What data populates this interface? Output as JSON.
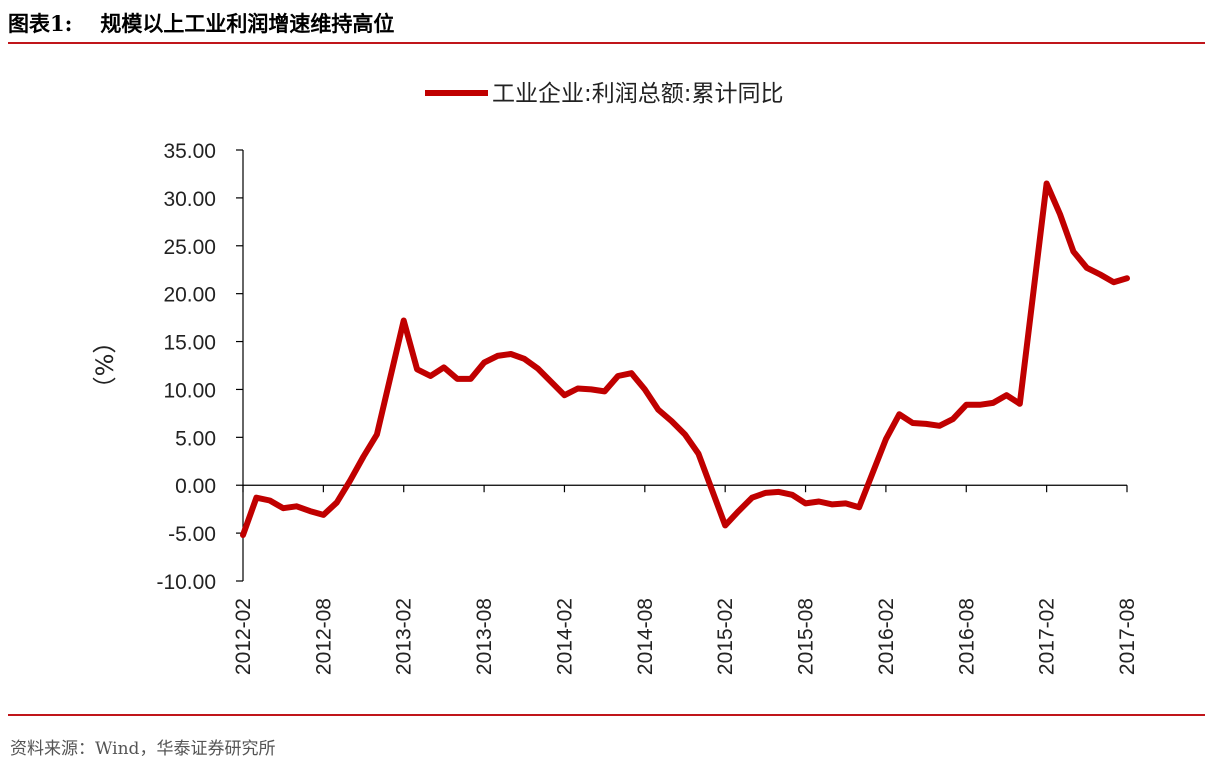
{
  "header": {
    "figure_number": "图表1:",
    "title": "规模以上工业利润增速维持高位"
  },
  "footer": {
    "source": "资料来源：Wind，华泰证券研究所"
  },
  "colors": {
    "accent": "#c0151a",
    "series": "#c00000",
    "axis": "#000000"
  },
  "chart_data": {
    "type": "line",
    "title": "",
    "xlabel": "",
    "ylabel": "（%）",
    "ylim": [
      -10,
      35
    ],
    "yticks": [
      "35.00",
      "30.00",
      "25.00",
      "20.00",
      "15.00",
      "10.00",
      "5.00",
      "0.00",
      "-5.00",
      "-10.00"
    ],
    "ytick_values": [
      35,
      30,
      25,
      20,
      15,
      10,
      5,
      0,
      -5,
      -10
    ],
    "x_tick_labels": [
      "2012-02",
      "2012-08",
      "2013-02",
      "2013-08",
      "2014-02",
      "2014-08",
      "2015-02",
      "2015-08",
      "2016-02",
      "2016-08",
      "2017-02",
      "2017-08"
    ],
    "legend": "top-center",
    "series": [
      {
        "name": "工业企业:利润总额:累计同比",
        "x": [
          "2012-02",
          "2012-03",
          "2012-04",
          "2012-05",
          "2012-06",
          "2012-07",
          "2012-08",
          "2012-09",
          "2012-10",
          "2012-11",
          "2012-12",
          "2013-02",
          "2013-03",
          "2013-04",
          "2013-05",
          "2013-06",
          "2013-07",
          "2013-08",
          "2013-09",
          "2013-10",
          "2013-11",
          "2013-12",
          "2014-02",
          "2014-03",
          "2014-04",
          "2014-05",
          "2014-06",
          "2014-07",
          "2014-08",
          "2014-09",
          "2014-10",
          "2014-11",
          "2014-12",
          "2015-02",
          "2015-03",
          "2015-04",
          "2015-05",
          "2015-06",
          "2015-07",
          "2015-08",
          "2015-09",
          "2015-10",
          "2015-11",
          "2015-12",
          "2016-02",
          "2016-03",
          "2016-04",
          "2016-05",
          "2016-06",
          "2016-07",
          "2016-08",
          "2016-09",
          "2016-10",
          "2016-11",
          "2016-12",
          "2017-02",
          "2017-03",
          "2017-04",
          "2017-05",
          "2017-06",
          "2017-07",
          "2017-08"
        ],
        "values": [
          -5.2,
          -1.3,
          -1.6,
          -2.4,
          -2.2,
          -2.7,
          -3.1,
          -1.8,
          0.5,
          3.0,
          5.3,
          17.2,
          12.1,
          11.4,
          12.3,
          11.1,
          11.1,
          12.8,
          13.5,
          13.7,
          13.2,
          12.2,
          9.4,
          10.1,
          10.0,
          9.8,
          11.4,
          11.7,
          10.0,
          7.9,
          6.7,
          5.3,
          3.3,
          -4.2,
          -2.7,
          -1.3,
          -0.8,
          -0.7,
          -1.0,
          -1.9,
          -1.7,
          -2.0,
          -1.9,
          -2.3,
          4.8,
          7.4,
          6.5,
          6.4,
          6.2,
          6.9,
          8.4,
          8.4,
          8.6,
          9.4,
          8.5,
          31.5,
          28.3,
          24.4,
          22.7,
          22.0,
          21.2,
          21.6
        ]
      }
    ]
  }
}
